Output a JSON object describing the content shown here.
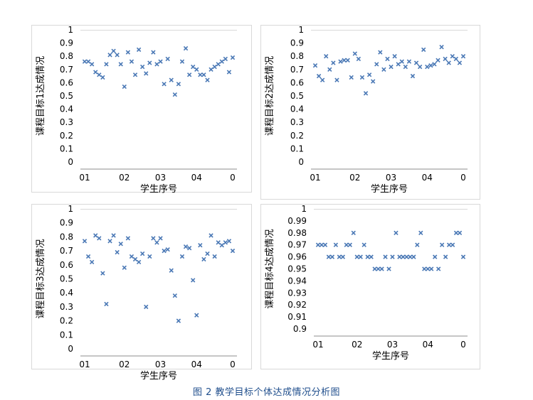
{
  "figure": {
    "caption": "图 2 教学目标个体达成情况分析图"
  },
  "colors": {
    "marker": "#4a78b5",
    "grid": "#d9d9d9",
    "axis": "#8c8c8c"
  },
  "chart_data": [
    {
      "type": "scatter",
      "marker": "x",
      "xlabel": "学生序号",
      "ylabel": "课程目标1达成情况",
      "ylim": [
        0,
        1
      ],
      "yticks": [
        "0",
        "0.1",
        "0.2",
        "0.3",
        "0.4",
        "0.5",
        "0.6",
        "0.7",
        "0.8",
        "0.9",
        "1"
      ],
      "xticks": [
        {
          "x": 1,
          "label": "01"
        },
        {
          "x": 12,
          "label": "02"
        },
        {
          "x": 22,
          "label": "03"
        },
        {
          "x": 32,
          "label": "04"
        },
        {
          "x": 42,
          "label": "0"
        }
      ],
      "xlim": [
        1,
        42
      ],
      "series": [
        {
          "x": [
            1,
            2,
            3,
            4,
            5,
            6,
            7,
            8,
            9,
            10,
            11,
            12,
            13,
            14,
            15,
            16,
            17,
            18,
            19,
            20,
            21,
            22,
            23,
            24,
            25,
            26,
            27,
            28,
            29,
            30,
            31,
            32,
            33,
            34,
            35,
            36,
            37,
            38,
            39,
            40,
            41,
            42
          ],
          "y": [
            0.76,
            0.76,
            0.74,
            0.68,
            0.66,
            0.64,
            0.74,
            0.81,
            0.84,
            0.81,
            0.74,
            0.57,
            0.83,
            0.76,
            0.66,
            0.85,
            0.72,
            0.67,
            0.75,
            0.83,
            0.74,
            0.76,
            0.59,
            0.78,
            0.62,
            0.51,
            0.59,
            0.76,
            0.86,
            0.66,
            0.72,
            0.7,
            0.66,
            0.66,
            0.62,
            0.7,
            0.72,
            0.74,
            0.76,
            0.78,
            0.68,
            0.79
          ]
        }
      ]
    },
    {
      "type": "scatter",
      "marker": "x",
      "xlabel": "学生序号",
      "ylabel": "课程目标2达成情况",
      "ylim": [
        0,
        1
      ],
      "yticks": [
        "0",
        "0.1",
        "0.2",
        "0.3",
        "0.4",
        "0.5",
        "0.6",
        "0.7",
        "0.8",
        "0.9",
        "1"
      ],
      "xticks": [
        {
          "x": 1,
          "label": "01"
        },
        {
          "x": 12,
          "label": "02"
        },
        {
          "x": 22,
          "label": "03"
        },
        {
          "x": 32,
          "label": "04"
        },
        {
          "x": 42,
          "label": "0"
        }
      ],
      "xlim": [
        1,
        42
      ],
      "series": [
        {
          "x": [
            1,
            2,
            3,
            4,
            5,
            6,
            7,
            8,
            9,
            10,
            11,
            12,
            13,
            14,
            15,
            16,
            17,
            18,
            19,
            20,
            21,
            22,
            23,
            24,
            25,
            26,
            27,
            28,
            29,
            30,
            31,
            32,
            33,
            34,
            35,
            36,
            37,
            38,
            39,
            40,
            41,
            42
          ],
          "y": [
            0.73,
            0.65,
            0.62,
            0.8,
            0.7,
            0.75,
            0.62,
            0.76,
            0.77,
            0.77,
            0.64,
            0.82,
            0.78,
            0.64,
            0.52,
            0.66,
            0.61,
            0.74,
            0.83,
            0.7,
            0.78,
            0.72,
            0.8,
            0.74,
            0.76,
            0.72,
            0.76,
            0.65,
            0.75,
            0.72,
            0.85,
            0.72,
            0.73,
            0.74,
            0.77,
            0.87,
            0.78,
            0.75,
            0.8,
            0.78,
            0.75,
            0.8
          ]
        }
      ]
    },
    {
      "type": "scatter",
      "marker": "x",
      "xlabel": "学生序号",
      "ylabel": "课程目标3达成情况",
      "ylim": [
        0,
        1
      ],
      "yticks": [
        "0",
        "0.1",
        "0.2",
        "0.3",
        "0.4",
        "0.5",
        "0.6",
        "0.7",
        "0.8",
        "0.9",
        "1"
      ],
      "xticks": [
        {
          "x": 1,
          "label": "01"
        },
        {
          "x": 12,
          "label": "02"
        },
        {
          "x": 22,
          "label": "03"
        },
        {
          "x": 32,
          "label": "04"
        },
        {
          "x": 42,
          "label": "0"
        }
      ],
      "xlim": [
        1,
        42
      ],
      "series": [
        {
          "x": [
            1,
            2,
            3,
            4,
            5,
            6,
            7,
            8,
            9,
            10,
            11,
            12,
            13,
            14,
            15,
            16,
            17,
            18,
            19,
            20,
            21,
            22,
            23,
            24,
            25,
            26,
            27,
            28,
            29,
            30,
            31,
            32,
            33,
            34,
            35,
            36,
            37,
            38,
            39,
            40,
            41,
            42
          ],
          "y": [
            0.77,
            0.66,
            0.62,
            0.81,
            0.79,
            0.54,
            0.32,
            0.77,
            0.81,
            0.69,
            0.75,
            0.58,
            0.79,
            0.66,
            0.64,
            0.62,
            0.68,
            0.3,
            0.66,
            0.79,
            0.76,
            0.79,
            0.7,
            0.71,
            0.56,
            0.38,
            0.2,
            0.66,
            0.73,
            0.72,
            0.49,
            0.24,
            0.74,
            0.64,
            0.68,
            0.81,
            0.66,
            0.76,
            0.74,
            0.76,
            0.77,
            0.7
          ]
        }
      ]
    },
    {
      "type": "scatter",
      "marker": "x",
      "xlabel": "学生序号",
      "ylabel": "课程目标4达成情况",
      "ylim": [
        0.9,
        1
      ],
      "yticks": [
        "0.9",
        "0.91",
        "0.92",
        "0.93",
        "0.94",
        "0.95",
        "0.96",
        "0.97",
        "0.98",
        "0.99",
        "1"
      ],
      "xticks": [
        {
          "x": 1,
          "label": "01"
        },
        {
          "x": 12,
          "label": "02"
        },
        {
          "x": 22,
          "label": "03"
        },
        {
          "x": 32,
          "label": "04"
        },
        {
          "x": 42,
          "label": "0"
        }
      ],
      "xlim": [
        1,
        42
      ],
      "series": [
        {
          "x": [
            1,
            2,
            3,
            4,
            5,
            6,
            7,
            8,
            9,
            10,
            11,
            12,
            13,
            14,
            15,
            16,
            17,
            18,
            19,
            20,
            21,
            22,
            23,
            24,
            25,
            26,
            27,
            28,
            29,
            30,
            31,
            32,
            33,
            34,
            35,
            36,
            37,
            38,
            39,
            40,
            41,
            42
          ],
          "y": [
            0.97,
            0.97,
            0.97,
            0.96,
            0.96,
            0.97,
            0.96,
            0.96,
            0.97,
            0.97,
            0.98,
            0.96,
            0.96,
            0.97,
            0.96,
            0.96,
            0.95,
            0.95,
            0.95,
            0.96,
            0.95,
            0.96,
            0.98,
            0.96,
            0.96,
            0.96,
            0.96,
            0.96,
            0.97,
            0.98,
            0.95,
            0.95,
            0.95,
            0.96,
            0.95,
            0.97,
            0.96,
            0.97,
            0.97,
            0.98,
            0.98,
            0.96
          ]
        }
      ]
    }
  ]
}
